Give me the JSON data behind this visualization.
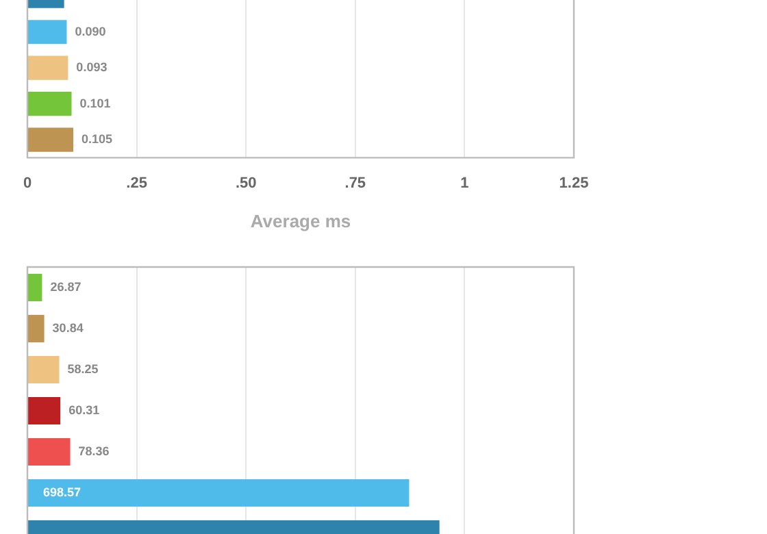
{
  "chart_data": [
    {
      "type": "bar",
      "orientation": "horizontal",
      "categories": [
        null,
        null,
        null,
        null,
        null
      ],
      "values": [
        0.084,
        0.09,
        0.093,
        0.101,
        0.105
      ],
      "colors": [
        "#2e83ad",
        "#4fbbeb",
        "#eec280",
        "#75c53a",
        "#be9452"
      ],
      "value_labels": [
        null,
        "0.090",
        "0.093",
        "0.101",
        "0.105"
      ],
      "xlim": [
        0,
        1.25
      ],
      "xticks": [
        {
          "value": 0,
          "label": "0"
        },
        {
          "value": 0.25,
          "label": ".25"
        },
        {
          "value": 0.5,
          "label": ".50"
        },
        {
          "value": 0.75,
          "label": ".75"
        },
        {
          "value": 1,
          "label": "1"
        },
        {
          "value": 1.25,
          "label": "1.25"
        }
      ],
      "xlabel": "Average ms",
      "grid": "x",
      "tick_labels": "x"
    },
    {
      "type": "bar",
      "orientation": "horizontal",
      "categories": [
        null,
        null,
        null,
        null,
        null,
        null,
        null
      ],
      "values": [
        26.87,
        30.84,
        58.25,
        60.31,
        78.36,
        698.57,
        754
      ],
      "colors": [
        "#75c53a",
        "#be9452",
        "#eec280",
        "#bc2022",
        "#ee5050",
        "#4fbbeb",
        "#2e83ad"
      ],
      "value_labels": [
        "26.87",
        "30.84",
        "58.25",
        "60.31",
        "78.36",
        "698.57",
        null
      ],
      "xlim": [
        0,
        1000
      ],
      "xticks": [
        {
          "value": 0,
          "label": null
        },
        {
          "value": 200,
          "label": null
        },
        {
          "value": 400,
          "label": null
        },
        {
          "value": 600,
          "label": null
        },
        {
          "value": 800,
          "label": null
        },
        {
          "value": 1000,
          "label": null
        }
      ],
      "grid": "x",
      "tick_labels": false
    }
  ]
}
